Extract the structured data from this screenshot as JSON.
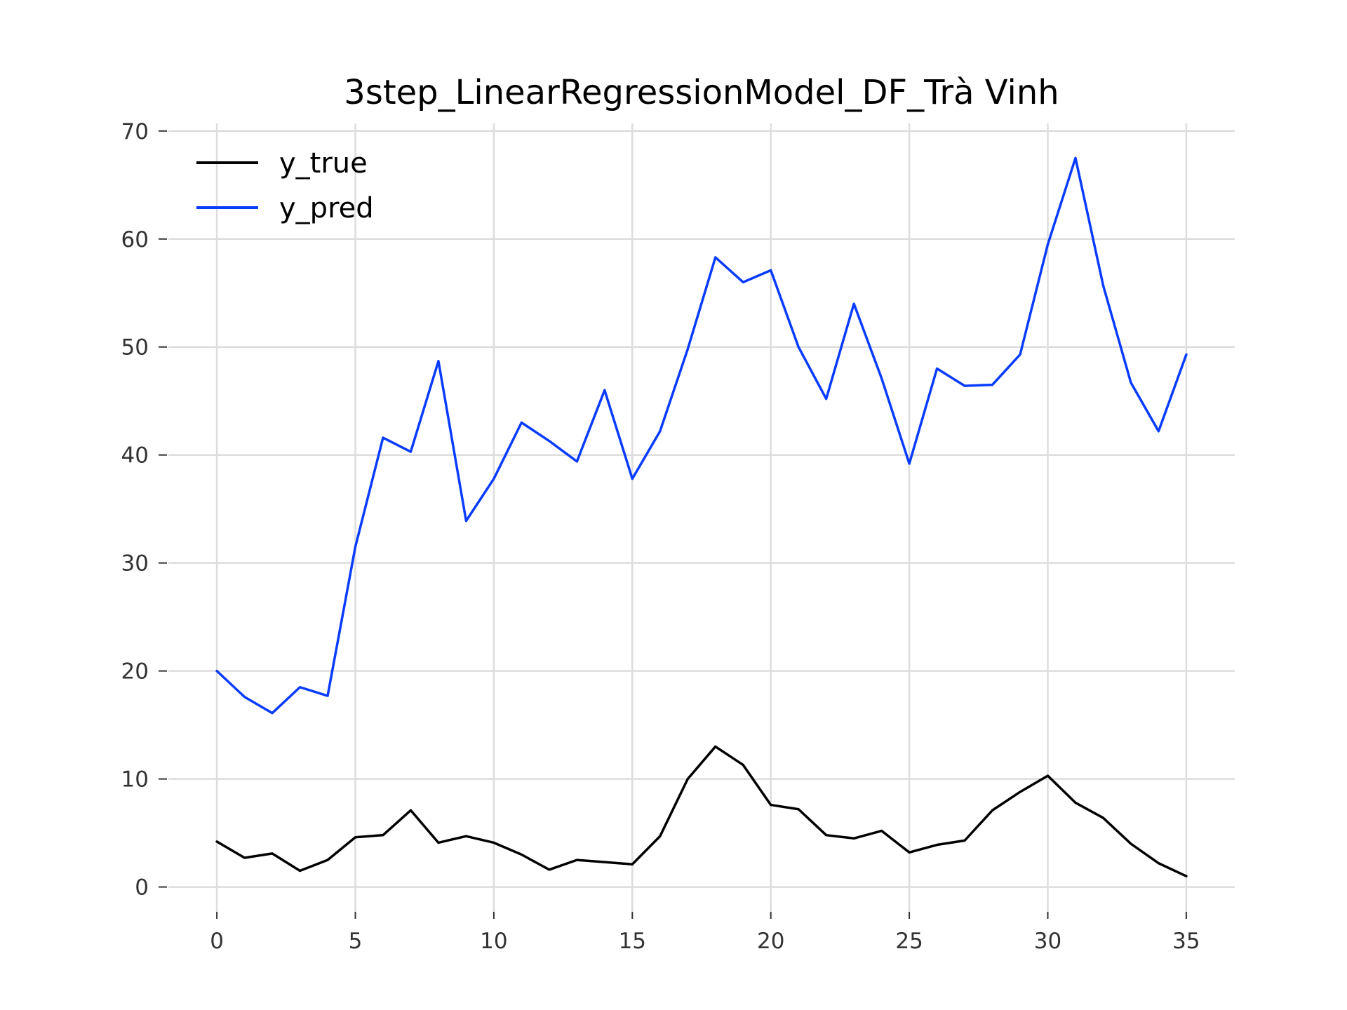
{
  "chart_data": {
    "type": "line",
    "title": "3step_LinearRegressionModel_DF_Trà Vinh",
    "xlabel": "",
    "ylabel": "",
    "xlim": [
      -1.75,
      36.75
    ],
    "ylim": [
      -2.3,
      70.7
    ],
    "xticks": [
      0,
      5,
      10,
      15,
      20,
      25,
      30,
      35
    ],
    "yticks": [
      0,
      10,
      20,
      30,
      40,
      50,
      60,
      70
    ],
    "grid": true,
    "legend_position": "top-left",
    "x": [
      0,
      1,
      2,
      3,
      4,
      5,
      6,
      7,
      8,
      9,
      10,
      11,
      12,
      13,
      14,
      15,
      16,
      17,
      18,
      19,
      20,
      21,
      22,
      23,
      24,
      25,
      26,
      27,
      28,
      29,
      30,
      31,
      32,
      33,
      34,
      35
    ],
    "series": [
      {
        "name": "y_true",
        "color": "#000000",
        "values": [
          4.2,
          2.7,
          3.1,
          1.5,
          2.5,
          4.6,
          4.8,
          7.1,
          4.1,
          4.7,
          4.1,
          3.0,
          1.6,
          2.5,
          2.3,
          2.1,
          4.7,
          10.0,
          13.0,
          11.3,
          7.6,
          7.2,
          4.8,
          4.5,
          5.2,
          3.2,
          3.9,
          4.3,
          7.1,
          8.8,
          10.3,
          7.8,
          6.4,
          4.0,
          2.2,
          1.0
        ]
      },
      {
        "name": "y_pred",
        "color": "#0a3cff",
        "values": [
          20.0,
          17.6,
          16.1,
          18.5,
          17.7,
          31.5,
          41.6,
          40.3,
          48.7,
          33.9,
          37.8,
          43.0,
          41.3,
          39.4,
          46.0,
          37.8,
          42.2,
          49.8,
          58.3,
          56.0,
          57.1,
          50.0,
          45.2,
          54.0,
          47.1,
          39.2,
          48.0,
          46.4,
          46.5,
          49.3,
          59.5,
          67.5,
          55.7,
          46.7,
          42.2,
          49.3
        ]
      }
    ]
  }
}
